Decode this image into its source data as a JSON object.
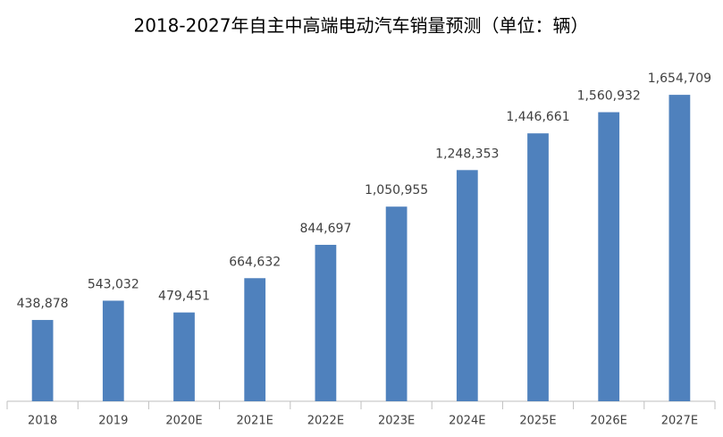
{
  "chart_data": {
    "type": "bar",
    "title": "2018-2027年自主中高端电动汽车销量预测（单位：辆）",
    "categories": [
      "2018",
      "2019",
      "2020E",
      "2021E",
      "2022E",
      "2023E",
      "2024E",
      "2025E",
      "2026E",
      "2027E"
    ],
    "values": [
      438878,
      543032,
      479451,
      664632,
      844697,
      1050955,
      1248353,
      1446661,
      1560932,
      1654709
    ],
    "value_labels": [
      "438,878",
      "543,032",
      "479,451",
      "664,632",
      "844,697",
      "1,050,955",
      "1,248,353",
      "1,446,661",
      "1,560,932",
      "1,654,709"
    ],
    "color": "#4f81bd",
    "ylim": [
      0,
      1800000
    ]
  }
}
